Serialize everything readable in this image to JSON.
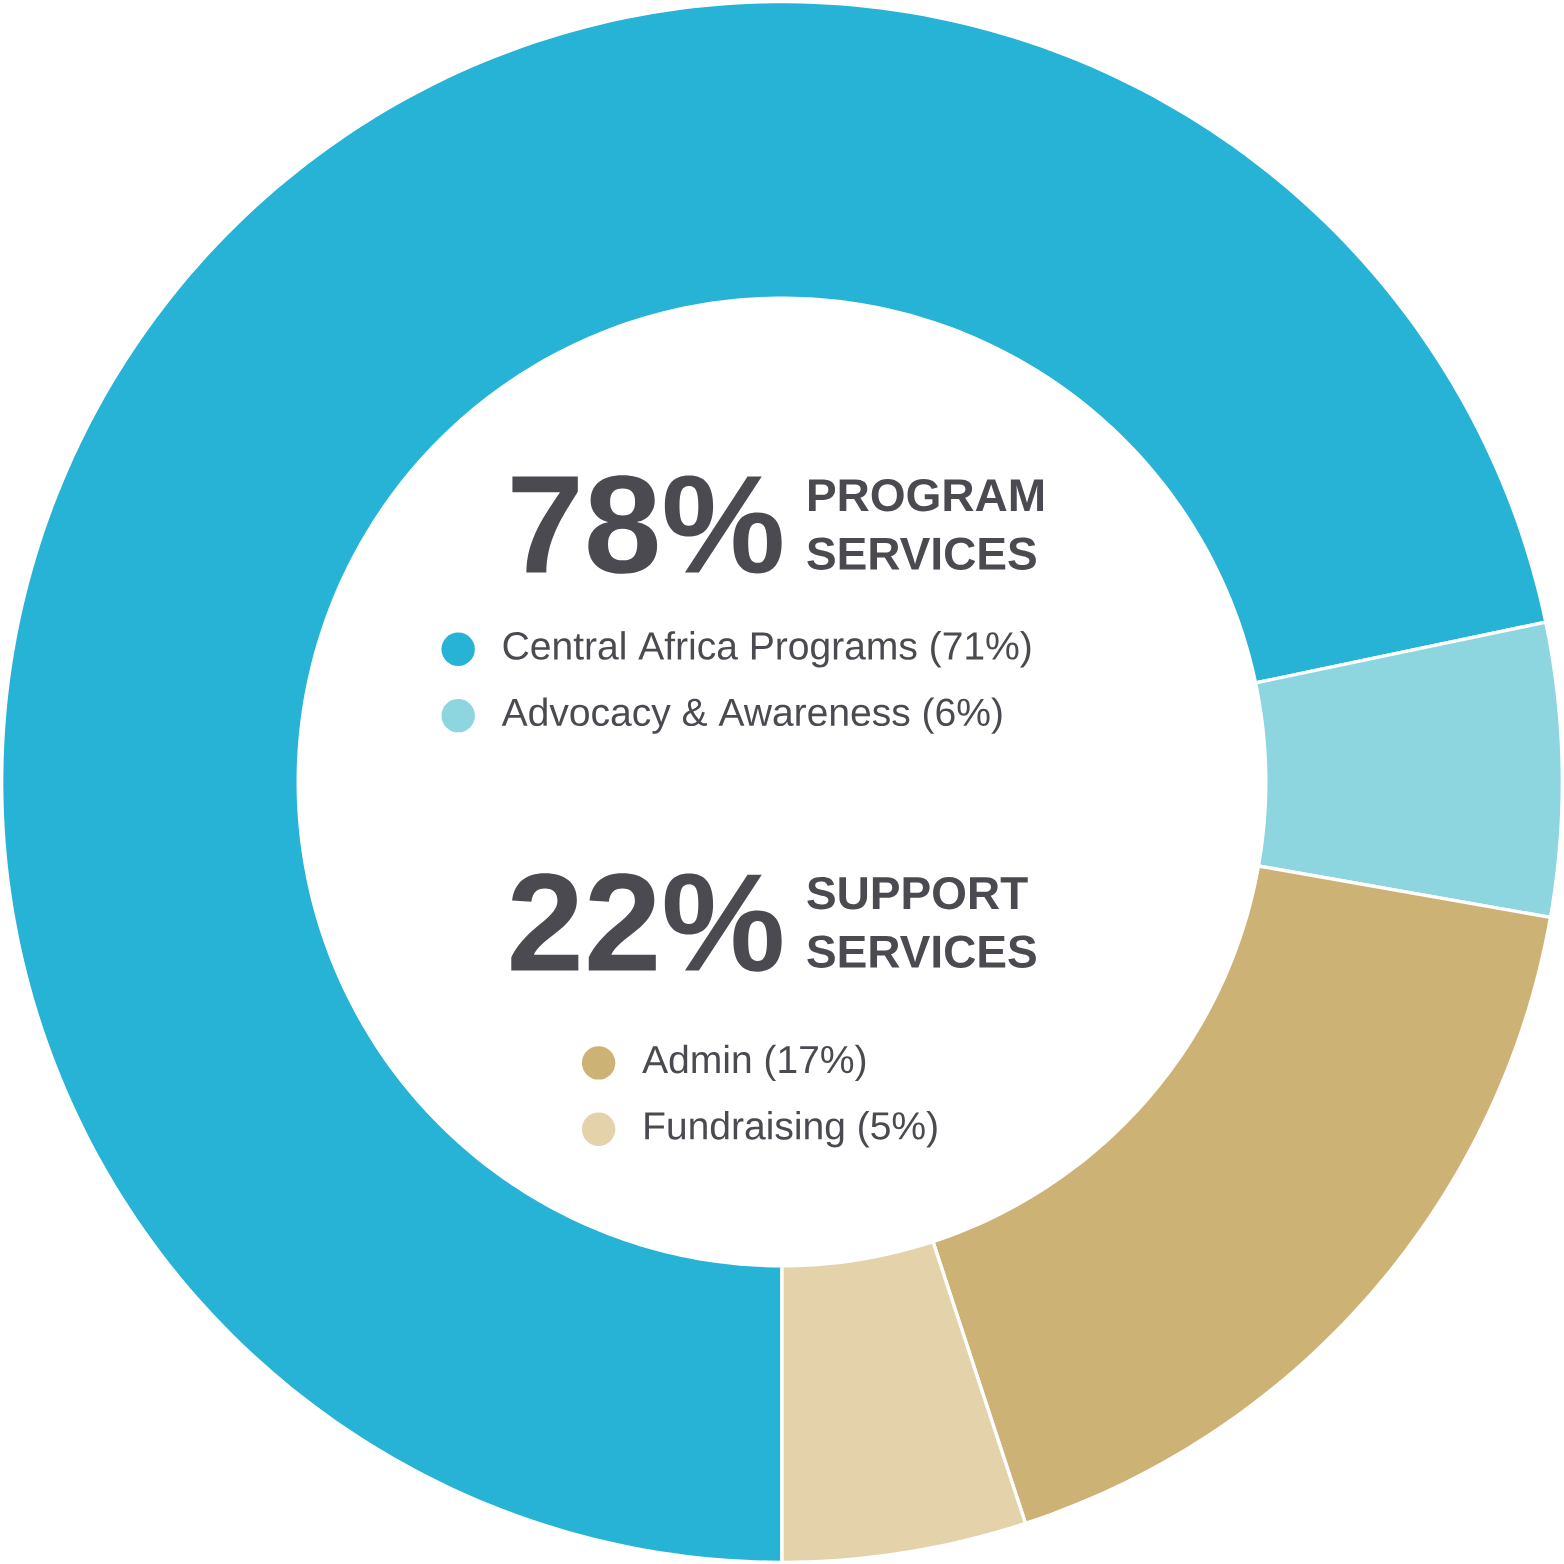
{
  "chart_data": {
    "type": "donut",
    "categories": [
      "Central Africa Programs (71%)",
      "Advocacy & Awareness (6%)",
      "Admin (17%)",
      "Fundraising (5%)"
    ],
    "values": [
      71,
      6,
      17,
      5
    ],
    "colors": [
      "#26b3d6",
      "#8dd6e0",
      "#cdb276",
      "#e3d2aa"
    ],
    "legend": "center",
    "annotations": [
      "78%",
      "PROGRAM SERVICES",
      "22%",
      "SUPPORT SERVICES"
    ]
  }
}
